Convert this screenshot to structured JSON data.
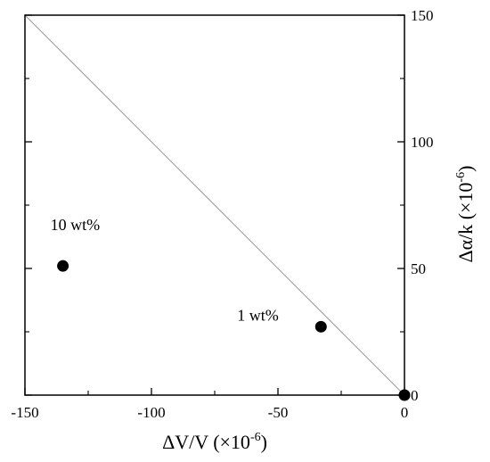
{
  "chart_data": {
    "type": "scatter",
    "xlabel": "ΔV/V (×10",
    "xlabel_exp": "-6",
    "xlabel_close": ")",
    "ylabel": "Δα/k (×10",
    "ylabel_exp": "-6",
    "ylabel_close": ")",
    "xlim": [
      -150,
      0
    ],
    "ylim": [
      0,
      150
    ],
    "xticks": [
      -150,
      -100,
      -50,
      0
    ],
    "yticks": [
      0,
      50,
      100,
      150
    ],
    "x_tick_labels": [
      "-150",
      "-100",
      "-50",
      "0"
    ],
    "y_tick_labels": [
      "0",
      "50",
      "100",
      "150"
    ],
    "y_axis_side": "right",
    "grid": false,
    "series": [
      {
        "points": [
          {
            "x": -135,
            "y": 51,
            "label": "10 wt%"
          },
          {
            "x": -33,
            "y": 27,
            "label": "1 wt%"
          },
          {
            "x": 0,
            "y": 0,
            "label": ""
          }
        ]
      }
    ],
    "reference_line": {
      "from": [
        -150,
        150
      ],
      "to": [
        0,
        0
      ]
    },
    "colors": {
      "marker": "#000000",
      "reference_line": "#999999",
      "axes": "#000000"
    }
  }
}
